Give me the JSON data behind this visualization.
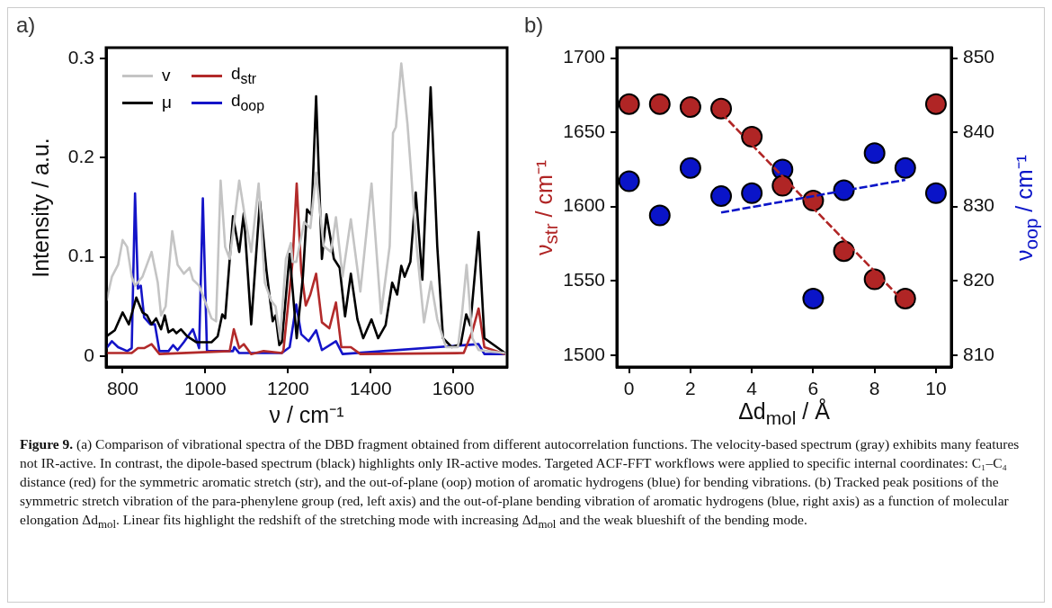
{
  "chart_data": [
    {
      "type": "line",
      "xlabel": "ν / cm⁻¹",
      "ylabel": "Intensity / a.u.",
      "xlim": [
        760,
        1730
      ],
      "xticks": [
        800,
        1000,
        1200,
        1400,
        1600
      ],
      "ylim": [
        -0.011,
        0.311
      ],
      "yticks": [
        0,
        0.1,
        0.2,
        0.3
      ],
      "grid": false,
      "legend": "top left",
      "marker": "none",
      "tick_labels": "xy",
      "annotations": [
        "a)",
        "Figure 9.",
        "(a) Comparison of vibrational spectra of the DBD fragment obtained from different autocorrelation functions. The velocity-based spectrum (gray) exhibits many features not IR-active. In contrast, the dipole-based spectrum (black) highlights only IR-active modes. Targeted ACF-FFT workflows were applied to specific internal coordinates: C₁–C₄ distance (red) for the symmetric aromatic stretch (str), and the out-of-plane (oop) motion of aromatic hydrogens (blue) for bending vibrations. (b) Tracked peak positions of the symmetric stretch vibration of the para-phenylene group (red, left axis) and the out-of-plane bending vibration of aromatic hydrogens (blue, right axis) as a function of molecular elongation Δd$_{mol}$. Linear fits highlight the redshift of the stretching mode with increasing Δd$_{mol}$ and the weak blueshift of the bending mode."
      ],
      "series": [
        {
          "name": "v",
          "color": "#c4c4c4",
          "x": [
            761,
            774,
            789,
            800,
            811,
            822,
            830,
            848,
            870,
            885,
            893,
            904,
            920,
            933,
            948,
            962,
            970,
            985,
            1015,
            1026,
            1037,
            1048,
            1059,
            1082,
            1096,
            1111,
            1129,
            1144,
            1159,
            1170,
            1181,
            1195,
            1207,
            1211,
            1220,
            1239,
            1254,
            1268,
            1286,
            1304,
            1316,
            1332,
            1352,
            1375,
            1402,
            1425,
            1446,
            1454,
            1461,
            1474,
            1489,
            1511,
            1529,
            1546,
            1561,
            1582,
            1611,
            1621,
            1632,
            1646,
            1661,
            1725
          ],
          "values": [
            0.056,
            0.08,
            0.092,
            0.117,
            0.11,
            0.08,
            0.071,
            0.08,
            0.105,
            0.074,
            0.041,
            0.05,
            0.126,
            0.092,
            0.083,
            0.089,
            0.077,
            0.071,
            0.038,
            0.035,
            0.177,
            0.11,
            0.098,
            0.177,
            0.14,
            0.105,
            0.174,
            0.074,
            0.056,
            0.05,
            0.017,
            0.098,
            0.114,
            0.095,
            0.095,
            0.135,
            0.129,
            0.185,
            0.111,
            0.105,
            0.14,
            0.08,
            0.138,
            0.065,
            0.174,
            0.043,
            0.111,
            0.225,
            0.231,
            0.295,
            0.234,
            0.111,
            0.034,
            0.075,
            0.037,
            0.009,
            0.009,
            0.043,
            0.092,
            0.018,
            0.006,
            0.003
          ]
        },
        {
          "name": "μ",
          "color": "#000000",
          "x": [
            761,
            781,
            800,
            815,
            833,
            848,
            859,
            870,
            881,
            893,
            902,
            911,
            922,
            930,
            941,
            956,
            978,
            1015,
            1030,
            1041,
            1048,
            1067,
            1082,
            1093,
            1111,
            1132,
            1148,
            1163,
            1170,
            1179,
            1185,
            1204,
            1221,
            1236,
            1246,
            1257,
            1268,
            1282,
            1293,
            1311,
            1325,
            1338,
            1352,
            1368,
            1382,
            1402,
            1418,
            1436,
            1452,
            1464,
            1474,
            1482,
            1496,
            1509,
            1525,
            1545,
            1561,
            1575,
            1596,
            1618,
            1631,
            1641,
            1661,
            1675,
            1725
          ],
          "values": [
            0.02,
            0.026,
            0.044,
            0.032,
            0.059,
            0.044,
            0.041,
            0.032,
            0.038,
            0.027,
            0.041,
            0.024,
            0.027,
            0.023,
            0.027,
            0.02,
            0.014,
            0.014,
            0.02,
            0.042,
            0.038,
            0.141,
            0.105,
            0.144,
            0.032,
            0.156,
            0.086,
            0.035,
            0.041,
            0.011,
            0.014,
            0.103,
            0.018,
            0.08,
            0.148,
            0.142,
            0.262,
            0.098,
            0.143,
            0.098,
            0.089,
            0.04,
            0.083,
            0.037,
            0.018,
            0.037,
            0.018,
            0.031,
            0.074,
            0.062,
            0.091,
            0.08,
            0.095,
            0.165,
            0.077,
            0.271,
            0.111,
            0.018,
            0.009,
            0.012,
            0.042,
            0.031,
            0.125,
            0.018,
            0.003
          ]
        },
        {
          "name": "d$_{str}$",
          "color": "#b22a2a",
          "x": [
            761,
            822,
            837,
            852,
            870,
            889,
            1059,
            1069,
            1082,
            1093,
            1111,
            1141,
            1185,
            1189,
            1211,
            1221,
            1232,
            1243,
            1254,
            1268,
            1282,
            1300,
            1316,
            1329,
            1352,
            1375,
            1625,
            1646,
            1661,
            1675,
            1725
          ],
          "values": [
            0.003,
            0.003,
            0.008,
            0.008,
            0.012,
            0.002,
            0.005,
            0.027,
            0.008,
            0.012,
            0.002,
            0.005,
            0.003,
            0.006,
            0.095,
            0.174,
            0.086,
            0.051,
            0.062,
            0.083,
            0.034,
            0.028,
            0.054,
            0.009,
            0.009,
            0.002,
            0.003,
            0.025,
            0.048,
            0.009,
            0.002
          ]
        },
        {
          "name": "d$_{oop}$",
          "color": "#1414c8",
          "x": [
            761,
            774,
            789,
            811,
            822,
            830,
            837,
            844,
            852,
            867,
            878,
            889,
            911,
            922,
            933,
            948,
            970,
            985,
            994,
            1004,
            1067,
            1070,
            1082,
            1185,
            1204,
            1220,
            1232,
            1250,
            1268,
            1282,
            1316,
            1332,
            1661,
            1675,
            1725
          ],
          "values": [
            0.008,
            0.015,
            0.009,
            0.005,
            0.008,
            0.164,
            0.068,
            0.071,
            0.039,
            0.032,
            0.032,
            0.005,
            0.005,
            0.011,
            0.006,
            0.014,
            0.027,
            0.008,
            0.159,
            0.005,
            0.005,
            0.009,
            0.003,
            0.003,
            0.009,
            0.052,
            0.022,
            0.015,
            0.026,
            0.006,
            0.015,
            0.002,
            0.012,
            0.002,
            0.002
          ]
        }
      ]
    },
    {
      "type": "scatter",
      "xlabel": "Δd$_{mol}$ / Å",
      "ylabel": "ν$_{str}$ / cm⁻¹",
      "y2label": "ν$_{oop}$ / cm⁻¹",
      "xlim": [
        -0.4,
        10.5
      ],
      "xticks": [
        0,
        2,
        4,
        6,
        8,
        10
      ],
      "ylim": [
        1492,
        1707
      ],
      "yticks": [
        1500,
        1550,
        1600,
        1650,
        1700
      ],
      "y2lim": [
        808.4,
        851.4
      ],
      "y2ticks": [
        810,
        820,
        830,
        840,
        850
      ],
      "grid": false,
      "legend": false,
      "marker": "circle",
      "annotations": [
        "b)"
      ],
      "series": [
        {
          "color": "#b02525",
          "x": [
            0,
            1,
            2,
            3,
            4,
            5,
            6,
            7,
            8,
            9,
            10
          ],
          "values": [
            1669,
            1669,
            1667,
            1666,
            1647,
            1614,
            1604,
            1570,
            1551,
            1538,
            1669
          ]
        },
        {
          "color": "#0a14c8",
          "axis": "y2",
          "x": [
            0,
            1,
            2,
            3,
            4,
            5,
            6,
            7,
            8,
            9,
            10
          ],
          "values": [
            833.4,
            828.8,
            835.2,
            831.4,
            831.8,
            835,
            817.6,
            832.2,
            837.2,
            835.2,
            831.8
          ]
        },
        {
          "type": "line",
          "color": "#b02525",
          "marker": "none",
          "line_style": "dashed",
          "x": [
            3,
            9
          ],
          "values": [
            1663,
            1535
          ]
        },
        {
          "type": "line",
          "color": "#0a14c8",
          "marker": "none",
          "line_style": "dashed",
          "axis": "y2",
          "x": [
            3,
            9
          ],
          "values": [
            829.2,
            833.6
          ]
        }
      ]
    }
  ]
}
